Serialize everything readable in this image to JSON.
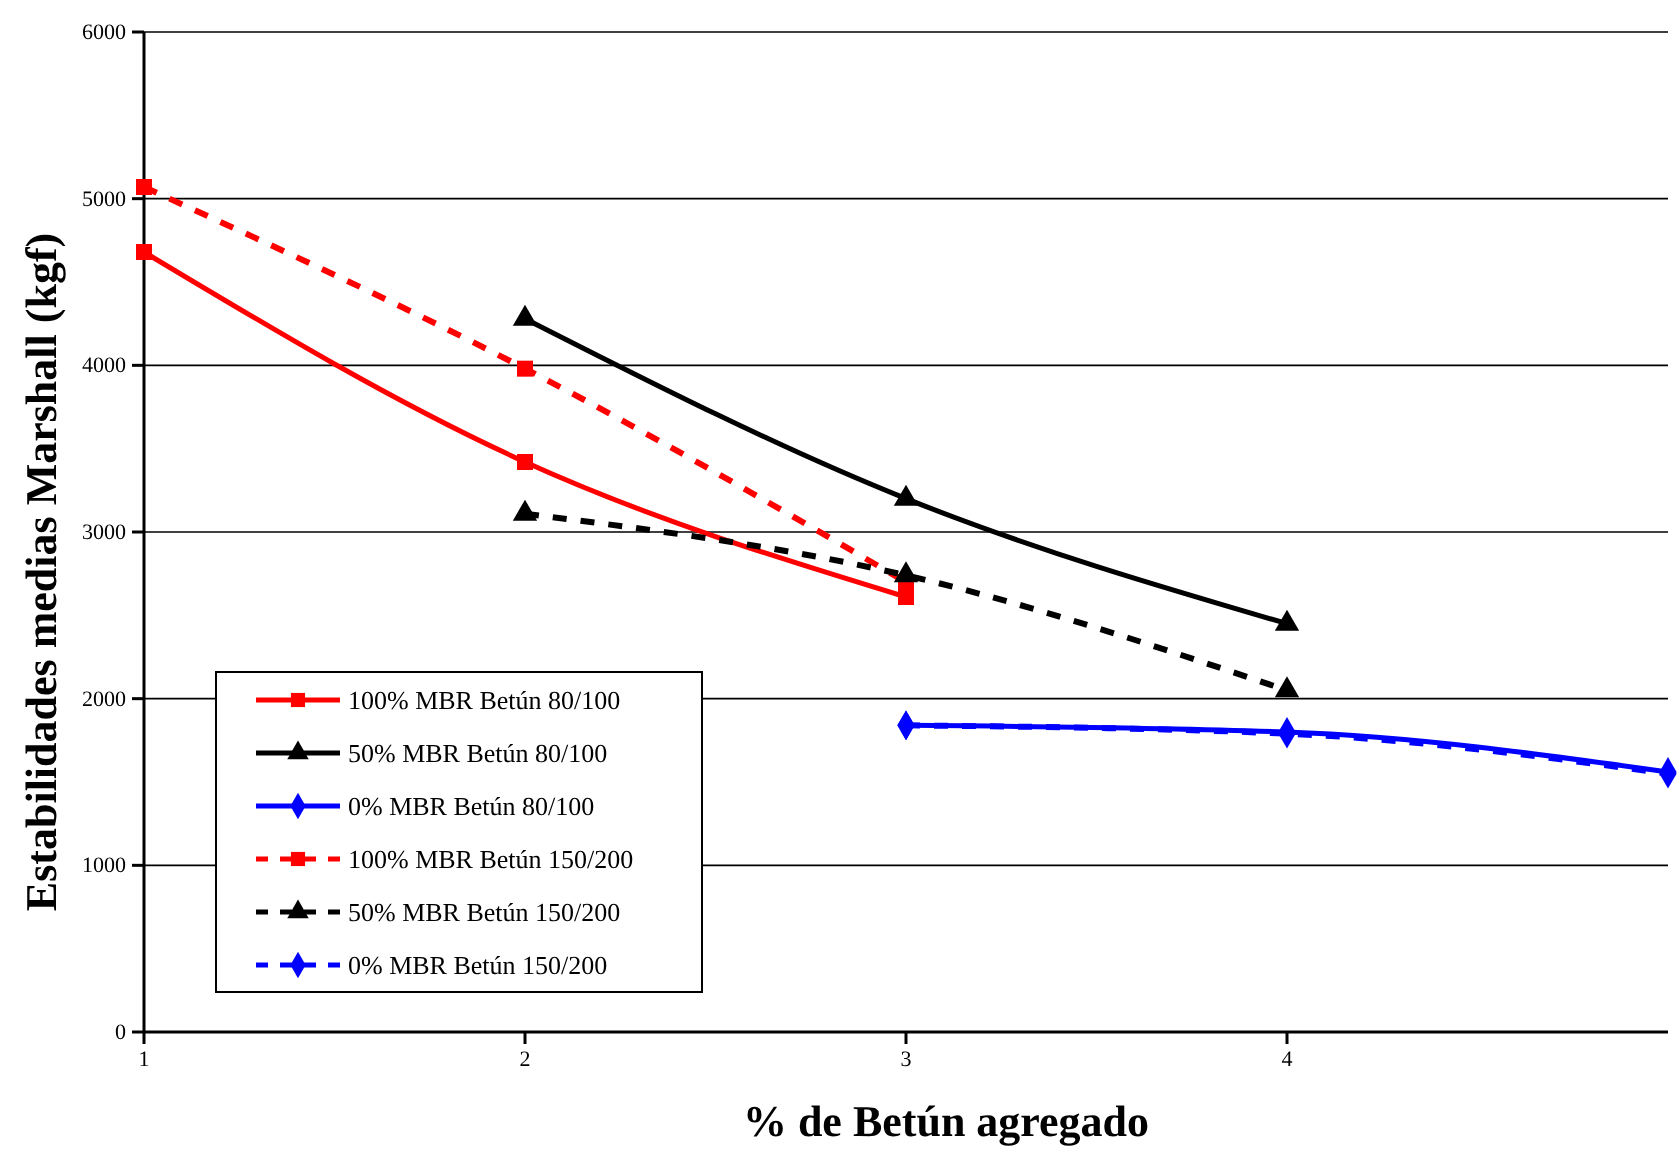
{
  "chart_data": {
    "type": "line",
    "xlabel": "% de Betún agregado",
    "ylabel": "Estabilidades medias Marshall (kgf)",
    "xlim": [
      1,
      5
    ],
    "ylim": [
      0,
      6000
    ],
    "xticks": [
      1,
      2,
      3,
      4
    ],
    "yticks": [
      0,
      1000,
      2000,
      3000,
      4000,
      5000,
      6000
    ],
    "grid": "y",
    "legend": "bottom left",
    "series": [
      {
        "name": "100% MBR Betún 80/100",
        "color": "#ff0000",
        "marker": "square",
        "line_style": "solid",
        "x": [
          1,
          2,
          3
        ],
        "values": [
          4680,
          3420,
          2610
        ]
      },
      {
        "name": "50% MBR Betún 80/100",
        "color": "#000000",
        "marker": "triangle",
        "line_style": "solid",
        "x": [
          2,
          3,
          4
        ],
        "values": [
          4280,
          3200,
          2450
        ]
      },
      {
        "name": "0% MBR Betún 80/100",
        "color": "#0000ff",
        "marker": "diamond",
        "line_style": "solid",
        "x": [
          3,
          4,
          5
        ],
        "values": [
          1840,
          1800,
          1560
        ]
      },
      {
        "name": "100% MBR Betún 150/200",
        "color": "#ff0000",
        "marker": "square",
        "line_style": "dashed",
        "x": [
          1,
          2,
          3
        ],
        "values": [
          5070,
          3980,
          2700
        ]
      },
      {
        "name": "50% MBR Betún 150/200",
        "color": "#000000",
        "marker": "triangle",
        "line_style": "dashed",
        "x": [
          2,
          3,
          4
        ],
        "values": [
          3110,
          2740,
          2050
        ]
      },
      {
        "name": "0% MBR Betún 150/200",
        "color": "#0000ff",
        "marker": "diamond",
        "line_style": "dashed",
        "x": [
          3,
          4,
          5
        ],
        "values": [
          1840,
          1790,
          1550
        ]
      }
    ]
  }
}
